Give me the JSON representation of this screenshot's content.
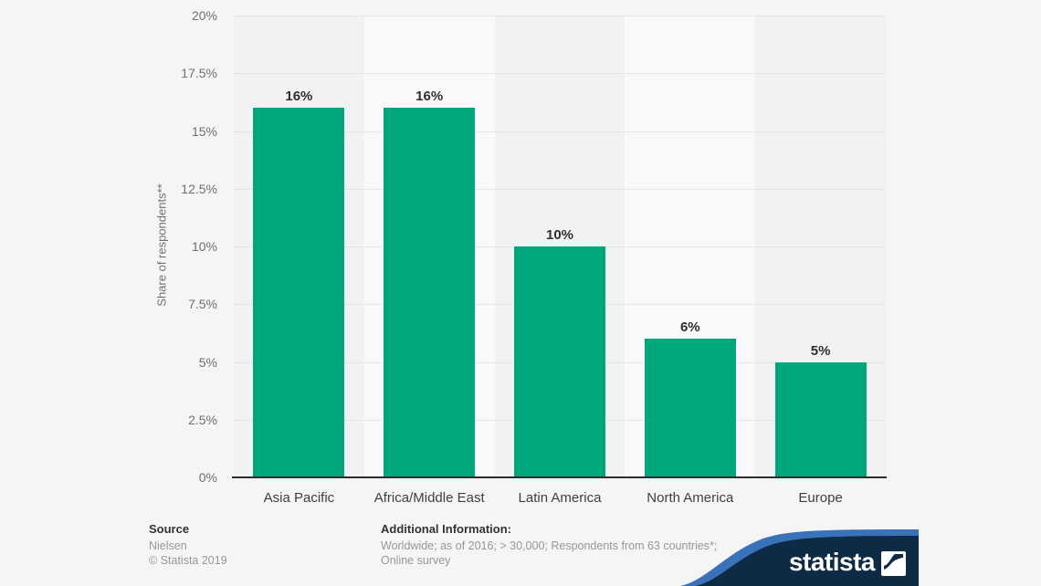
{
  "background_color": "#f5f5f6",
  "chart_data": {
    "type": "bar",
    "title": "",
    "categories": [
      "Asia Pacific",
      "Africa/Middle East",
      "Latin America",
      "North America",
      "Europe"
    ],
    "values": [
      16,
      16,
      10,
      6,
      5
    ],
    "value_labels": [
      "16%",
      "16%",
      "10%",
      "6%",
      "5%"
    ],
    "xlabel": "",
    "ylabel": "Share of respondents**",
    "ylim": [
      0,
      20
    ],
    "yticks": [
      0,
      2.5,
      5,
      7.5,
      10,
      12.5,
      15,
      17.5,
      20
    ],
    "ytick_labels": [
      "0%",
      "2.5%",
      "5%",
      "7.5%",
      "10%",
      "12.5%",
      "15%",
      "17.5%",
      "20%"
    ],
    "grid": "horizontal-dotted",
    "legend": "none",
    "bar_color": "#00a77d",
    "plot_band_dark": "#f1f2f2",
    "plot_band_light": "#f8f9fa",
    "gridline_color": "#d7d7d7",
    "axis_line_color": "#2e2e2e"
  },
  "footer": {
    "source_label": "Source",
    "source_lines": [
      "Nielsen",
      "© Statista 2019"
    ],
    "additional_label": "Additional Information:",
    "additional_lines": [
      "Worldwide; as of 2016; > 30,000; Respondents from 63 countries*;",
      "Online survey"
    ]
  },
  "branding": {
    "logo_text": "statista",
    "navy_color": "#0d2b45",
    "blue_color": "#3a72b9"
  }
}
